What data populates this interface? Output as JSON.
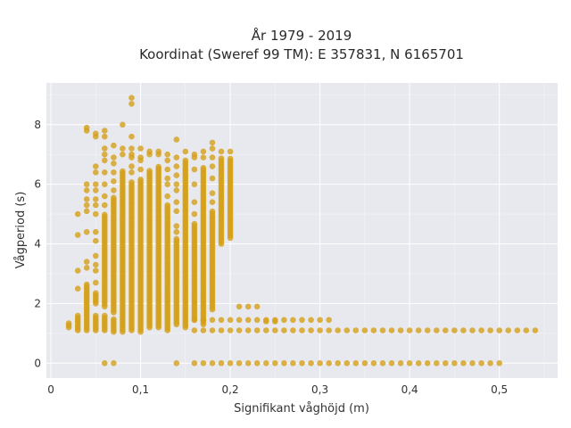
{
  "chart_data": {
    "type": "scatter",
    "title": "År 1979 - 2019",
    "subtitle": "Koordinat (Sweref 99 TM): E 357831, N 6165701",
    "xlabel": "Signifikant våghöjd (m)",
    "ylabel": "Vågperiod (s)",
    "xlim": [
      -0.005,
      0.565
    ],
    "ylim": [
      -0.5,
      9.4
    ],
    "xticks": [
      0,
      0.1,
      0.2,
      0.3,
      0.4,
      0.5
    ],
    "xtick_labels": [
      "0",
      "0,1",
      "0,2",
      "0,3",
      "0,4",
      "0,5"
    ],
    "yticks": [
      0,
      2,
      4,
      6,
      8
    ],
    "ytick_labels": [
      "0",
      "2",
      "4",
      "6",
      "8"
    ],
    "grid": true,
    "marker_color": "#d4a018",
    "plot_background": "#e8e8ef",
    "columns": [
      {
        "x": 0.02,
        "ranges": [
          [
            1.2,
            1.35
          ]
        ],
        "points": []
      },
      {
        "x": 0.03,
        "ranges": [
          [
            1.1,
            1.6
          ]
        ],
        "points": [
          2.5,
          3.1,
          4.3,
          5.0
        ]
      },
      {
        "x": 0.04,
        "ranges": [
          [
            1.1,
            2.7
          ]
        ],
        "points": [
          3.2,
          3.4,
          4.4,
          5.1,
          5.3,
          5.5,
          5.8,
          6.0,
          7.8,
          7.9
        ]
      },
      {
        "x": 0.05,
        "ranges": [
          [
            1.1,
            1.6
          ],
          [
            2.0,
            2.4
          ]
        ],
        "points": [
          2.7,
          3.1,
          3.3,
          3.6,
          4.1,
          4.4,
          5.0,
          5.3,
          5.5,
          5.8,
          6.0,
          6.4,
          6.6,
          7.6,
          7.7
        ]
      },
      {
        "x": 0.06,
        "ranges": [
          [
            1.1,
            1.6
          ],
          [
            1.9,
            5.0
          ]
        ],
        "points": [
          0,
          5.3,
          5.6,
          6.0,
          6.4,
          6.8,
          7.0,
          7.2,
          7.6,
          7.8
        ]
      },
      {
        "x": 0.07,
        "ranges": [
          [
            1.05,
            1.5
          ],
          [
            1.7,
            5.6
          ]
        ],
        "points": [
          0,
          5.8,
          6.1,
          6.4,
          6.7,
          6.9,
          7.3
        ]
      },
      {
        "x": 0.08,
        "ranges": [
          [
            1.05,
            6.5
          ]
        ],
        "points": [
          7.0,
          7.2,
          8.0
        ]
      },
      {
        "x": 0.09,
        "ranges": [
          [
            1.1,
            6.1
          ]
        ],
        "points": [
          6.4,
          6.6,
          6.9,
          7.0,
          7.2,
          7.6,
          8.7,
          8.9
        ]
      },
      {
        "x": 0.1,
        "ranges": [
          [
            1.05,
            6.2
          ]
        ],
        "points": [
          6.5,
          6.8,
          6.9,
          7.2
        ]
      },
      {
        "x": 0.11,
        "ranges": [
          [
            1.2,
            6.5
          ]
        ],
        "points": [
          7.0,
          7.1
        ]
      },
      {
        "x": 0.12,
        "ranges": [
          [
            1.2,
            6.6
          ]
        ],
        "points": [
          7.0,
          7.1
        ]
      },
      {
        "x": 0.13,
        "ranges": [
          [
            1.1,
            5.3
          ]
        ],
        "points": [
          5.6,
          6.0,
          6.2,
          6.5,
          6.8,
          7.0
        ]
      },
      {
        "x": 0.14,
        "ranges": [
          [
            1.3,
            4.2
          ]
        ],
        "points": [
          4.4,
          4.6,
          5.1,
          5.4,
          5.8,
          6.0,
          6.3,
          6.6,
          6.9,
          7.5
        ]
      },
      {
        "x": 0.15,
        "ranges": [
          [
            1.2,
            6.8
          ]
        ],
        "points": [
          7.1
        ]
      },
      {
        "x": 0.16,
        "ranges": [
          [
            1.45,
            4.7
          ]
        ],
        "points": [
          5.0,
          5.4,
          6.0,
          6.5,
          6.9,
          7.0
        ]
      },
      {
        "x": 0.17,
        "ranges": [
          [
            1.3,
            6.6
          ]
        ],
        "points": [
          6.9,
          7.1
        ]
      },
      {
        "x": 0.18,
        "ranges": [
          [
            1.8,
            5.1
          ]
        ],
        "points": [
          5.4,
          5.7,
          6.2,
          6.6,
          6.9,
          7.2,
          7.4
        ]
      },
      {
        "x": 0.19,
        "ranges": [
          [
            4.0,
            6.9
          ]
        ],
        "points": [
          7.1
        ]
      },
      {
        "x": 0.2,
        "ranges": [
          [
            4.2,
            6.9
          ]
        ],
        "points": [
          7.1
        ]
      }
    ],
    "rows": [
      {
        "y": 1.45,
        "x_from": 0.16,
        "x_to": 0.31,
        "step": 0.01
      },
      {
        "y": 1.1,
        "x_from": 0.16,
        "x_to": 0.54,
        "step": 0.01
      },
      {
        "y": 0,
        "x_from": 0.16,
        "x_to": 0.5,
        "step": 0.01
      }
    ],
    "extra_points": [
      {
        "x": 0.14,
        "y": 0
      },
      {
        "x": 0.22,
        "y": 1.9
      },
      {
        "x": 0.23,
        "y": 1.9
      },
      {
        "x": 0.21,
        "y": 1.9
      },
      {
        "x": 0.24,
        "y": 1.4
      },
      {
        "x": 0.25,
        "y": 1.4
      }
    ]
  }
}
